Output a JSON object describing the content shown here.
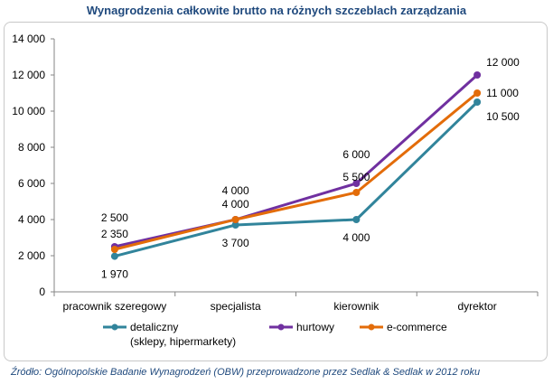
{
  "title": "Wynagrodzenia całkowite brutto na różnych szczeblach zarządzania",
  "source": "Źródło: Ogólnopolskie Badanie Wynagrodzeń (OBW) przeprowadzone przez Sedlak & Sedlak w 2012 roku",
  "legend": [
    {
      "line1": "detaliczny",
      "line2": "(sklepy, hipermarkety)"
    },
    {
      "line1": "hurtowy",
      "line2": ""
    },
    {
      "line1": "e-commerce",
      "line2": ""
    }
  ],
  "chart_data": {
    "type": "line",
    "title": "Wynagrodzenia całkowite brutto na różnych szczeblach zarządzania",
    "categories": [
      "pracownik szeregowy",
      "specjalista",
      "kierownik",
      "dyrektor"
    ],
    "ylim": [
      0,
      14000
    ],
    "yticks": [
      0,
      2000,
      4000,
      6000,
      8000,
      10000,
      12000,
      14000
    ],
    "ytick_labels": [
      "0",
      "2 000",
      "4 000",
      "6 000",
      "8 000",
      "10 000",
      "12 000",
      "14 000"
    ],
    "grid": false,
    "legend_position": "bottom",
    "series": [
      {
        "name": "detaliczny (sklepy, hipermarkety)",
        "color": "#31849b",
        "values": [
          1970,
          3700,
          4000,
          10500
        ],
        "labels": [
          "1 970",
          "3 700",
          "4 000",
          "10 500"
        ]
      },
      {
        "name": "hurtowy",
        "color": "#7030a0",
        "values": [
          2500,
          4000,
          6000,
          12000
        ],
        "labels": [
          "2 500",
          "4 000",
          "6 000",
          "12 000"
        ]
      },
      {
        "name": "e-commerce",
        "color": "#e36c09",
        "values": [
          2350,
          4000,
          5500,
          11000
        ],
        "labels": [
          "2 350",
          "4 000",
          "5 500",
          "11 000"
        ]
      }
    ]
  }
}
